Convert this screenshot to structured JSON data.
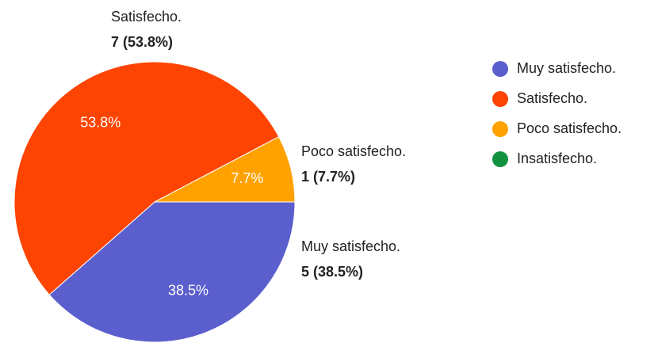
{
  "chart_data": {
    "type": "pie",
    "categories": [
      "Muy satisfecho.",
      "Satisfecho.",
      "Poco satisfecho.",
      "Insatisfecho."
    ],
    "values": [
      38.5,
      53.8,
      7.7,
      0
    ],
    "value_labels": [
      "38.5%",
      "53.8%",
      "7.7%",
      null
    ],
    "counts": [
      5,
      7,
      1,
      0
    ],
    "count_labels": [
      "5 (38.5%)",
      "7 (53.8%)",
      "1 (7.7%)",
      null
    ],
    "colors": [
      "#5b5ecd",
      "#fd4402",
      "#ffa200",
      "#11923f"
    ],
    "legend": "right"
  }
}
